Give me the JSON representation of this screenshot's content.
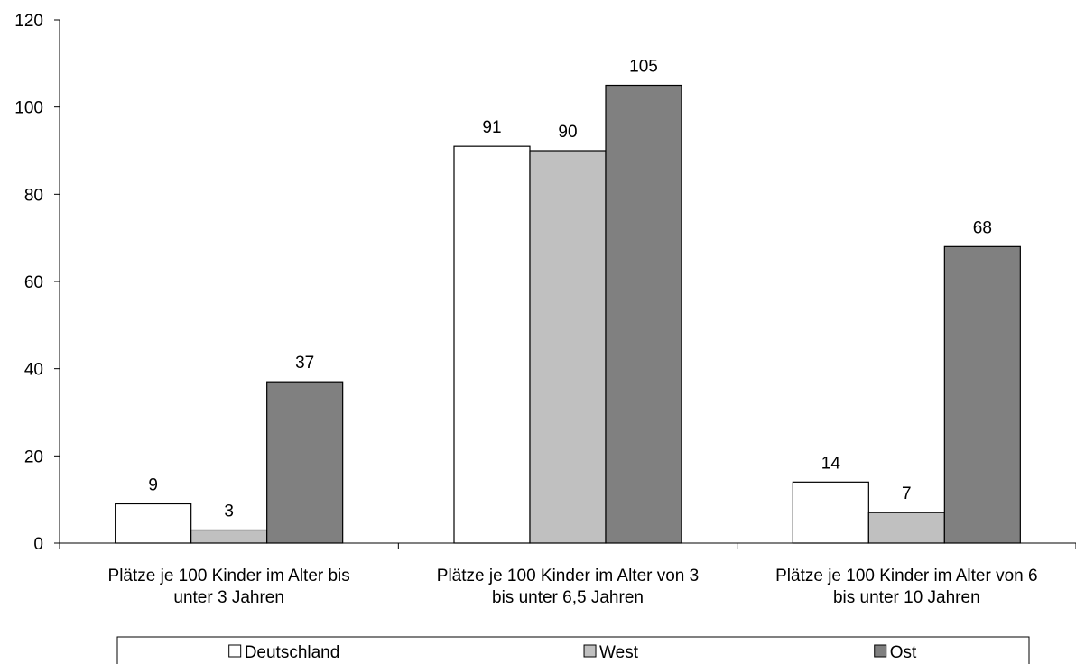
{
  "chart_data": {
    "type": "bar",
    "categories": [
      [
        "Plätze je 100 Kinder im Alter bis",
        "unter 3 Jahren"
      ],
      [
        "Plätze je 100 Kinder im Alter von 3",
        "bis unter 6,5 Jahren"
      ],
      [
        "Plätze je 100 Kinder im Alter von 6",
        "bis unter 10 Jahren"
      ]
    ],
    "series": [
      {
        "name": "Deutschland",
        "values": [
          9,
          91,
          14
        ],
        "color": "#ffffff"
      },
      {
        "name": "West",
        "values": [
          3,
          90,
          7
        ],
        "color": "#c0c0c0"
      },
      {
        "name": "Ost",
        "values": [
          37,
          105,
          68
        ],
        "color": "#808080"
      }
    ],
    "ylim": [
      0,
      120
    ],
    "yticks": [
      0,
      20,
      40,
      60,
      80,
      100,
      120
    ],
    "grid": false,
    "legend_position": "bottom",
    "data_labels": true
  }
}
